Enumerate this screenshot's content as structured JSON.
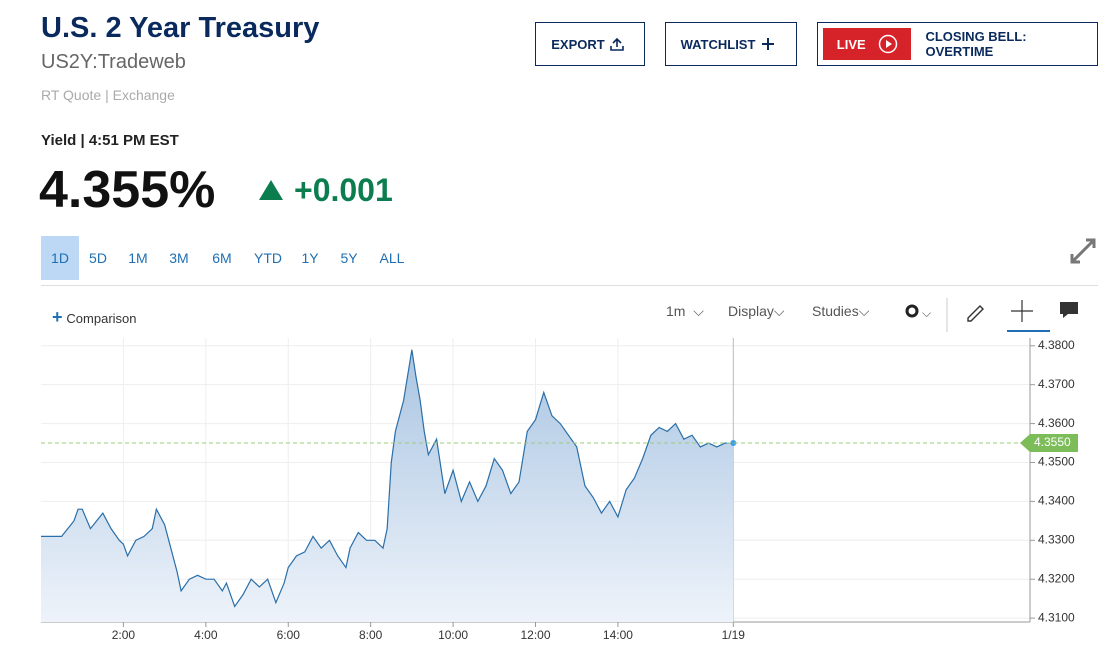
{
  "header": {
    "title": "U.S. 2 Year Treasury",
    "symbol": "US2Y:Tradeweb",
    "quote_source": "RT Quote | Exchange",
    "quote_time": "Yield | 4:51 PM EST",
    "price": "4.355%",
    "change": "+0.001"
  },
  "buttons": {
    "export": "EXPORT",
    "watchlist": "WATCHLIST",
    "live": "LIVE",
    "live_show": "CLOSING BELL: OVERTIME"
  },
  "ranges": [
    "1D",
    "5D",
    "1M",
    "3M",
    "6M",
    "YTD",
    "1Y",
    "5Y",
    "ALL"
  ],
  "toolbar": {
    "comparison": "Comparison",
    "interval": "1m",
    "display": "Display",
    "studies": "Studies"
  },
  "chart_data": {
    "type": "line",
    "color": "#2a6fa8",
    "x": [
      0,
      0.5,
      0.8,
      0.9,
      1,
      1.2,
      1.5,
      1.7,
      1.9,
      2,
      2.1,
      2.3,
      2.5,
      2.7,
      2.8,
      3,
      3.1,
      3.2,
      3.3,
      3.4,
      3.6,
      3.8,
      4,
      4.2,
      4.4,
      4.5,
      4.7,
      4.9,
      5.1,
      5.3,
      5.5,
      5.7,
      5.9,
      6,
      6.2,
      6.4,
      6.6,
      6.8,
      7,
      7.2,
      7.4,
      7.5,
      7.7,
      7.9,
      8.1,
      8.3,
      8.4,
      8.5,
      8.6,
      8.8,
      9,
      9.1,
      9.2,
      9.3,
      9.4,
      9.6,
      9.8,
      10,
      10.2,
      10.4,
      10.6,
      10.8,
      11,
      11.2,
      11.4,
      11.6,
      11.8,
      12,
      12.2,
      12.4,
      12.6,
      12.8,
      13,
      13.2,
      13.4,
      13.6,
      13.8,
      14,
      14.2,
      14.4,
      14.6,
      14.8,
      15,
      15.2,
      15.4,
      15.6,
      15.8,
      16,
      16.2,
      16.4,
      16.6,
      16.8
    ],
    "values": [
      4.331,
      4.331,
      4.335,
      4.338,
      4.338,
      4.333,
      4.337,
      4.333,
      4.33,
      4.329,
      4.326,
      4.33,
      4.331,
      4.333,
      4.338,
      4.334,
      4.33,
      4.326,
      4.322,
      4.317,
      4.32,
      4.321,
      4.32,
      4.32,
      4.317,
      4.319,
      4.313,
      4.316,
      4.32,
      4.318,
      4.32,
      4.314,
      4.319,
      4.323,
      4.326,
      4.327,
      4.331,
      4.328,
      4.33,
      4.326,
      4.323,
      4.328,
      4.332,
      4.33,
      4.33,
      4.328,
      4.333,
      4.35,
      4.358,
      4.366,
      4.379,
      4.372,
      4.366,
      4.358,
      4.352,
      4.356,
      4.342,
      4.348,
      4.34,
      4.345,
      4.34,
      4.344,
      4.351,
      4.348,
      4.342,
      4.345,
      4.358,
      4.361,
      4.368,
      4.362,
      4.36,
      4.357,
      4.354,
      4.344,
      4.341,
      4.337,
      4.34,
      4.336,
      4.343,
      4.346,
      4.351,
      4.357,
      4.359,
      4.358,
      4.36,
      4.356,
      4.357,
      4.354,
      4.355,
      4.354,
      4.355,
      4.355
    ],
    "xlim": [
      0,
      24
    ],
    "xticks": [
      {
        "value": 2,
        "label": "2:00"
      },
      {
        "value": 4,
        "label": "4:00"
      },
      {
        "value": 6,
        "label": "6:00"
      },
      {
        "value": 8,
        "label": "8:00"
      },
      {
        "value": 10,
        "label": "10:00"
      },
      {
        "value": 12,
        "label": "12:00"
      },
      {
        "value": 14,
        "label": "14:00"
      },
      {
        "value": 16.8,
        "label": "1/19"
      }
    ],
    "ylim": [
      4.309,
      4.382
    ],
    "yticks": [
      {
        "value": 4.31,
        "label": "4.3100"
      },
      {
        "value": 4.32,
        "label": "4.3200"
      },
      {
        "value": 4.33,
        "label": "4.3300"
      },
      {
        "value": 4.34,
        "label": "4.3400"
      },
      {
        "value": 4.35,
        "label": "4.3500"
      },
      {
        "value": 4.36,
        "label": "4.3600"
      },
      {
        "value": 4.37,
        "label": "4.3700"
      },
      {
        "value": 4.38,
        "label": "4.3800"
      }
    ],
    "reference_line": {
      "value": 4.355,
      "label": "4.3550"
    },
    "grid": true
  }
}
